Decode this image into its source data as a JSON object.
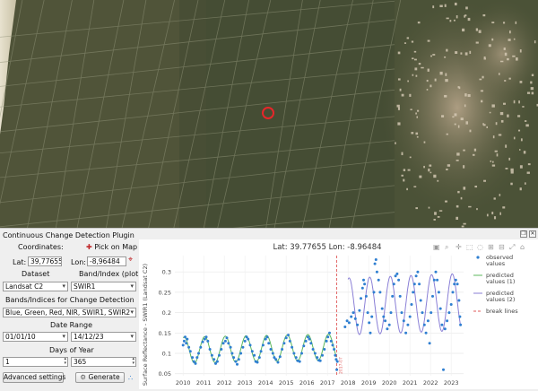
{
  "plugin": {
    "title": "Continuous Change Detection Plugin",
    "coordinates_label": "Coordinates:",
    "pick_on_map": "Pick on Map",
    "lat_label": "Lat:",
    "lat_value": "39,77655",
    "lon_label": "Lon:",
    "lon_value": "-8,96484",
    "dataset_label": "Dataset",
    "dataset_value": "Landsat C2",
    "band_label": "Band/Index (plot)",
    "band_value": "SWIR1",
    "bands_cd_label": "Bands/Indices for Change Detection",
    "bands_cd_value": "Blue, Green, Red, NIR, SWIR1, SWIR2",
    "date_range_label": "Date Range",
    "date_start": "01/01/10",
    "date_end": "14/12/23",
    "doy_label": "Days of Year",
    "doy_start": "1",
    "doy_end": "365",
    "advanced_button": "Advanced settings",
    "generate_button": "Generate"
  },
  "map": {
    "marker_color": "#e8262a"
  },
  "chart_data": {
    "type": "scatter",
    "title": "Lat: 39.77655  Lon: -8.96484",
    "ylabel": "Surface Reflectance - SWIR1 (Landsat C2)",
    "xlabel": "",
    "xlim": [
      2009.6,
      2023.6
    ],
    "ylim": [
      0.045,
      0.34
    ],
    "xticks": [
      2010,
      2011,
      2012,
      2013,
      2014,
      2015,
      2016,
      2017,
      2018,
      2019,
      2020,
      2021,
      2022,
      2023
    ],
    "yticks": [
      0.05,
      0.1,
      0.15,
      0.2,
      0.25,
      0.3
    ],
    "break_x": 2017.45,
    "break_label": "2017-07",
    "legend": {
      "placement": "right",
      "items": [
        "observed values",
        "predicted values (1)",
        "predicted values (2)",
        "break lines"
      ]
    },
    "colors": {
      "observed": "#2f7fd1",
      "pred1": "#5cb85c",
      "pred2": "#8a7fd6",
      "break": "#e05a5a"
    },
    "predicted_1": {
      "x_start": 2010,
      "x_end": 2017.45,
      "mean": 0.108,
      "amplitude": 0.032,
      "trend": 0.001
    },
    "predicted_2": {
      "x_start": 2018.0,
      "x_end": 2023.45,
      "mean": 0.215,
      "amplitude": 0.07,
      "trend": 0.002
    },
    "observed": [
      [
        2010.0,
        0.12
      ],
      [
        2010.05,
        0.13
      ],
      [
        2010.1,
        0.14
      ],
      [
        2010.15,
        0.125
      ],
      [
        2010.2,
        0.135
      ],
      [
        2010.28,
        0.115
      ],
      [
        2010.35,
        0.105
      ],
      [
        2010.45,
        0.09
      ],
      [
        2010.52,
        0.08
      ],
      [
        2010.6,
        0.075
      ],
      [
        2010.68,
        0.09
      ],
      [
        2010.75,
        0.1
      ],
      [
        2010.85,
        0.115
      ],
      [
        2010.95,
        0.128
      ],
      [
        2011.05,
        0.135
      ],
      [
        2011.12,
        0.14
      ],
      [
        2011.2,
        0.13
      ],
      [
        2011.3,
        0.11
      ],
      [
        2011.4,
        0.095
      ],
      [
        2011.5,
        0.085
      ],
      [
        2011.58,
        0.075
      ],
      [
        2011.66,
        0.08
      ],
      [
        2011.75,
        0.095
      ],
      [
        2011.85,
        0.11
      ],
      [
        2011.95,
        0.125
      ],
      [
        2012.05,
        0.13
      ],
      [
        2012.12,
        0.138
      ],
      [
        2012.2,
        0.125
      ],
      [
        2012.3,
        0.115
      ],
      [
        2012.38,
        0.1
      ],
      [
        2012.45,
        0.09
      ],
      [
        2012.55,
        0.08
      ],
      [
        2012.62,
        0.073
      ],
      [
        2012.7,
        0.085
      ],
      [
        2012.8,
        0.1
      ],
      [
        2012.9,
        0.115
      ],
      [
        2013.0,
        0.13
      ],
      [
        2013.08,
        0.14
      ],
      [
        2013.15,
        0.135
      ],
      [
        2013.25,
        0.12
      ],
      [
        2013.35,
        0.105
      ],
      [
        2013.45,
        0.095
      ],
      [
        2013.52,
        0.08
      ],
      [
        2013.6,
        0.078
      ],
      [
        2013.7,
        0.09
      ],
      [
        2013.78,
        0.105
      ],
      [
        2013.88,
        0.12
      ],
      [
        2014.0,
        0.135
      ],
      [
        2014.08,
        0.14
      ],
      [
        2014.15,
        0.125
      ],
      [
        2014.25,
        0.11
      ],
      [
        2014.35,
        0.1
      ],
      [
        2014.42,
        0.09
      ],
      [
        2014.5,
        0.085
      ],
      [
        2014.6,
        0.078
      ],
      [
        2014.7,
        0.092
      ],
      [
        2014.8,
        0.11
      ],
      [
        2014.9,
        0.125
      ],
      [
        2015.0,
        0.138
      ],
      [
        2015.1,
        0.145
      ],
      [
        2015.18,
        0.13
      ],
      [
        2015.28,
        0.115
      ],
      [
        2015.38,
        0.1
      ],
      [
        2015.48,
        0.09
      ],
      [
        2015.55,
        0.082
      ],
      [
        2015.65,
        0.08
      ],
      [
        2015.75,
        0.1
      ],
      [
        2015.85,
        0.118
      ],
      [
        2015.95,
        0.13
      ],
      [
        2016.05,
        0.14
      ],
      [
        2016.12,
        0.135
      ],
      [
        2016.2,
        0.125
      ],
      [
        2016.3,
        0.11
      ],
      [
        2016.4,
        0.1
      ],
      [
        2016.5,
        0.09
      ],
      [
        2016.58,
        0.083
      ],
      [
        2016.65,
        0.082
      ],
      [
        2016.75,
        0.095
      ],
      [
        2016.85,
        0.11
      ],
      [
        2016.95,
        0.13
      ],
      [
        2017.02,
        0.14
      ],
      [
        2017.1,
        0.15
      ],
      [
        2017.18,
        0.13
      ],
      [
        2017.25,
        0.12
      ],
      [
        2017.32,
        0.11
      ],
      [
        2017.38,
        0.095
      ],
      [
        2017.42,
        0.085
      ],
      [
        2017.45,
        0.06
      ],
      [
        2017.48,
        0.08
      ],
      [
        2017.85,
        0.165
      ],
      [
        2017.95,
        0.18
      ],
      [
        2018.05,
        0.175
      ],
      [
        2018.15,
        0.19
      ],
      [
        2018.25,
        0.2
      ],
      [
        2018.35,
        0.185
      ],
      [
        2018.45,
        0.17
      ],
      [
        2018.55,
        0.205
      ],
      [
        2018.62,
        0.235
      ],
      [
        2018.7,
        0.26
      ],
      [
        2018.75,
        0.28
      ],
      [
        2018.8,
        0.27
      ],
      [
        2018.88,
        0.24
      ],
      [
        2018.95,
        0.2
      ],
      [
        2019.02,
        0.175
      ],
      [
        2019.08,
        0.15
      ],
      [
        2019.15,
        0.19
      ],
      [
        2019.25,
        0.25
      ],
      [
        2019.3,
        0.32
      ],
      [
        2019.35,
        0.33
      ],
      [
        2019.4,
        0.3
      ],
      [
        2019.48,
        0.28
      ],
      [
        2019.55,
        0.25
      ],
      [
        2019.65,
        0.21
      ],
      [
        2019.72,
        0.19
      ],
      [
        2019.8,
        0.18
      ],
      [
        2019.9,
        0.16
      ],
      [
        2020.0,
        0.17
      ],
      [
        2020.08,
        0.2
      ],
      [
        2020.15,
        0.24
      ],
      [
        2020.22,
        0.27
      ],
      [
        2020.3,
        0.29
      ],
      [
        2020.38,
        0.295
      ],
      [
        2020.45,
        0.28
      ],
      [
        2020.52,
        0.24
      ],
      [
        2020.6,
        0.2
      ],
      [
        2020.7,
        0.18
      ],
      [
        2020.8,
        0.15
      ],
      [
        2020.9,
        0.17
      ],
      [
        2021.0,
        0.19
      ],
      [
        2021.08,
        0.22
      ],
      [
        2021.15,
        0.25
      ],
      [
        2021.22,
        0.27
      ],
      [
        2021.3,
        0.29
      ],
      [
        2021.38,
        0.3
      ],
      [
        2021.45,
        0.27
      ],
      [
        2021.52,
        0.23
      ],
      [
        2021.6,
        0.2
      ],
      [
        2021.7,
        0.17
      ],
      [
        2021.78,
        0.15
      ],
      [
        2021.88,
        0.18
      ],
      [
        2021.95,
        0.125
      ],
      [
        2022.02,
        0.2
      ],
      [
        2022.1,
        0.24
      ],
      [
        2022.18,
        0.28
      ],
      [
        2022.25,
        0.3
      ],
      [
        2022.32,
        0.28
      ],
      [
        2022.4,
        0.25
      ],
      [
        2022.48,
        0.21
      ],
      [
        2022.55,
        0.17
      ],
      [
        2022.62,
        0.06
      ],
      [
        2022.7,
        0.16
      ],
      [
        2022.8,
        0.18
      ],
      [
        2022.9,
        0.2
      ],
      [
        2023.0,
        0.22
      ],
      [
        2023.08,
        0.25
      ],
      [
        2023.15,
        0.27
      ],
      [
        2023.22,
        0.28
      ],
      [
        2023.3,
        0.27
      ],
      [
        2023.38,
        0.23
      ],
      [
        2023.42,
        0.19
      ],
      [
        2023.45,
        0.17
      ]
    ]
  }
}
